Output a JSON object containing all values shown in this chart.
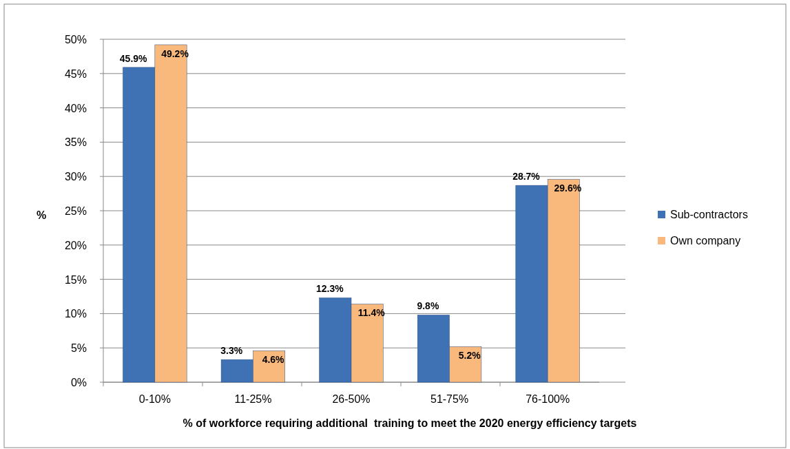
{
  "chart_data": {
    "type": "bar",
    "xlabel": "% of workforce requiring additional  training to meet the 2020 energy efficiency targets",
    "ylabel": "%",
    "categories": [
      "0-10%",
      "11-25%",
      "26-50%",
      "51-75%",
      "76-100%"
    ],
    "series": [
      {
        "name": "Sub-contractors",
        "color": "#3f72b5",
        "values": [
          45.9,
          3.3,
          12.3,
          9.8,
          28.7
        ],
        "value_labels": [
          "45.9%",
          "3.3%",
          "12.3%",
          "9.8%",
          "28.7%"
        ]
      },
      {
        "name": "Own company",
        "color": "#f9b97c",
        "values": [
          49.2,
          4.6,
          11.4,
          5.2,
          29.6
        ],
        "value_labels": [
          "49.2%",
          "4.6%",
          "11.4%",
          "5.2%",
          "29.6%"
        ]
      }
    ],
    "ylim": [
      0,
      50
    ],
    "yticks": [
      {
        "value": 0,
        "label": "0%"
      },
      {
        "value": 5,
        "label": "5%"
      },
      {
        "value": 10,
        "label": "10%"
      },
      {
        "value": 15,
        "label": "15%"
      },
      {
        "value": 20,
        "label": "20%"
      },
      {
        "value": 25,
        "label": "25%"
      },
      {
        "value": 30,
        "label": "30%"
      },
      {
        "value": 35,
        "label": "35%"
      },
      {
        "value": 40,
        "label": "40%"
      },
      {
        "value": 45,
        "label": "45%"
      },
      {
        "value": 50,
        "label": "50%"
      }
    ],
    "grid": "y",
    "legend": "right"
  }
}
